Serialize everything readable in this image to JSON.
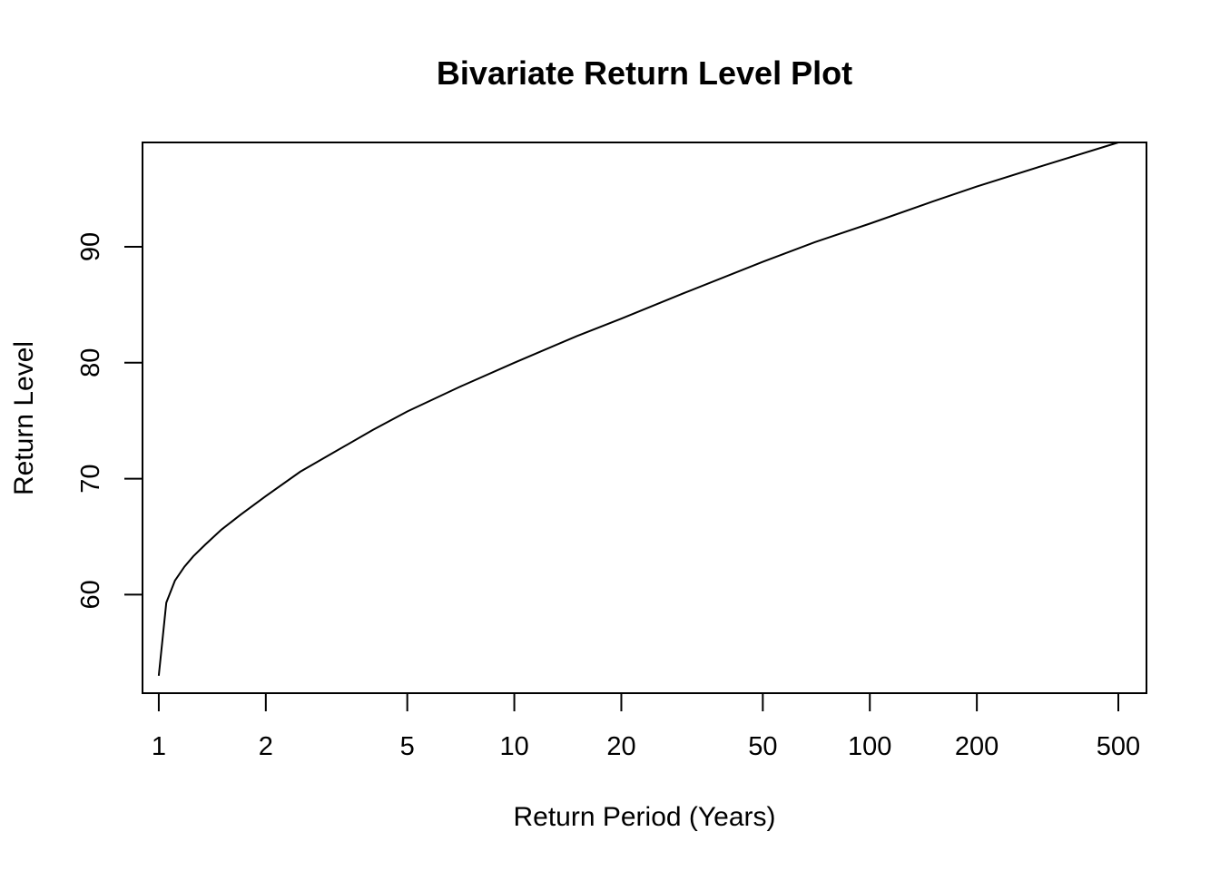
{
  "chart_data": {
    "type": "line",
    "title": "Bivariate Return Level Plot",
    "xlabel": "Return Period (Years)",
    "ylabel": "Return Level",
    "x_scale": "log",
    "xlim": [
      0.9,
      600
    ],
    "ylim": [
      51.5,
      99
    ],
    "x_ticks": [
      1,
      2,
      5,
      10,
      20,
      50,
      100,
      200,
      500
    ],
    "x_tick_labels": [
      "1",
      "2",
      "5",
      "10",
      "20",
      "50",
      "100",
      "200",
      "500"
    ],
    "y_ticks": [
      60,
      70,
      80,
      90
    ],
    "y_tick_labels": [
      "60",
      "70",
      "80",
      "90"
    ],
    "grid": false,
    "legend": "none",
    "series": [
      {
        "color": "#000000",
        "x": [
          1.0,
          1.05,
          1.11,
          1.18,
          1.25,
          1.35,
          1.5,
          1.7,
          2.0,
          2.5,
          3.0,
          4.0,
          5.0,
          7.0,
          10.0,
          15.0,
          20.0,
          30.0,
          50.0,
          70.0,
          100.0,
          150.0,
          200.0,
          300.0,
          500.0
        ],
        "y": [
          53.0,
          59.3,
          61.2,
          62.4,
          63.3,
          64.3,
          65.6,
          66.9,
          68.5,
          70.6,
          72.0,
          74.2,
          75.8,
          77.9,
          80.0,
          82.3,
          83.8,
          86.0,
          88.7,
          90.4,
          92.0,
          93.9,
          95.2,
          96.9,
          99.0
        ]
      }
    ]
  }
}
